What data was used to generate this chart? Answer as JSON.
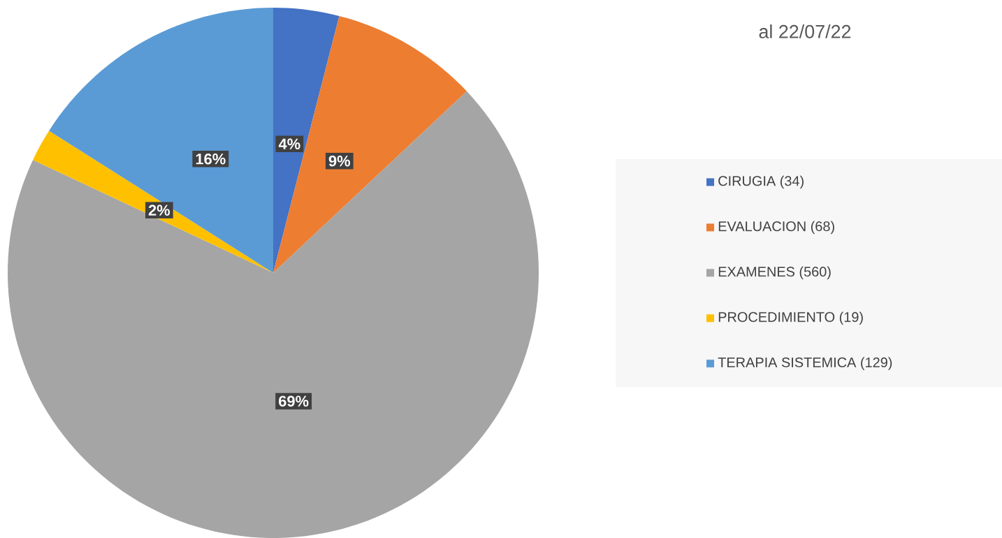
{
  "chart_data": {
    "type": "pie",
    "title": "al 22/07/22",
    "categories": [
      "CIRUGIA (34)",
      "EVALUACION (68)",
      "EXAMENES (560)",
      "PROCEDIMIENTO (19)",
      "TERAPIA SISTEMICA (129)"
    ],
    "values": [
      4,
      9,
      69,
      2,
      16
    ],
    "colors": [
      "#4472c4",
      "#ed7d31",
      "#a5a5a5",
      "#ffc000",
      "#5b9bd5"
    ],
    "value_labels": [
      "4%",
      "9%",
      "69%",
      "2%",
      "16%"
    ],
    "legend": "right"
  }
}
